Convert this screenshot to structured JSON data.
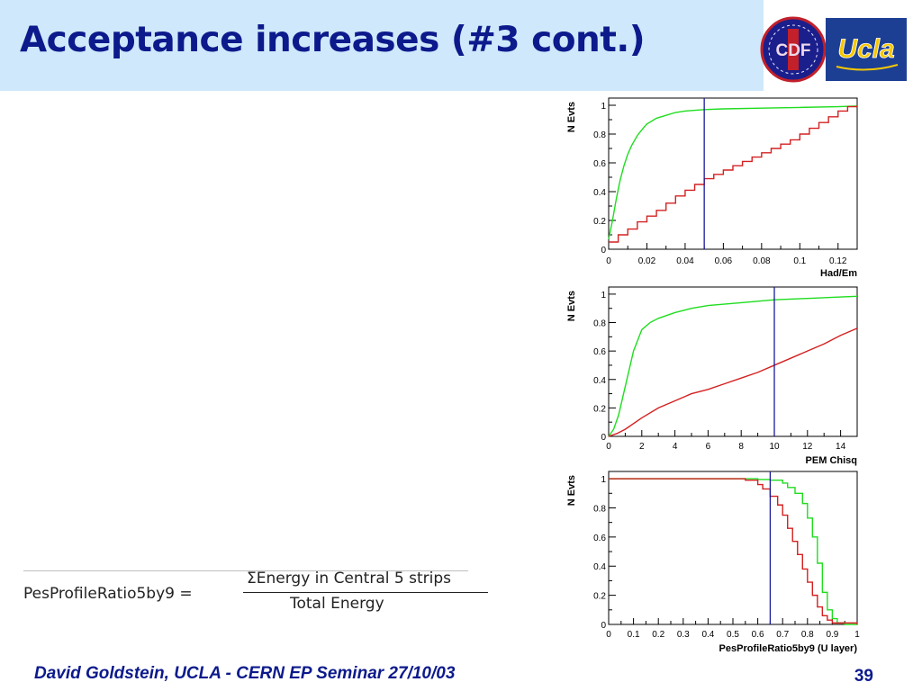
{
  "slide": {
    "title": "Acceptance increases (#3 cont.)",
    "footer": "David Goldstein, UCLA - CERN EP Seminar 27/10/03",
    "page_number": "39"
  },
  "logos": {
    "cdf": "CDF",
    "ucla": "Ucla"
  },
  "formula": {
    "lhs": "PesProfileRatio5by9 =",
    "numerator": "ΣEnergy in Central 5 strips",
    "denominator": "Total Energy"
  },
  "colors": {
    "title": "#0c1a8c",
    "band": "#cfe8fb",
    "signal": "#1fdd1f",
    "background_curve": "#d42020",
    "cut_line": "#1a1a9a"
  },
  "chart_data": [
    {
      "type": "line",
      "xlabel": "Had/Em",
      "ylabel": "N Evts",
      "xlim": [
        0,
        0.13
      ],
      "ylim": [
        0,
        1.05
      ],
      "xticks": [
        0,
        0.02,
        0.04,
        0.06,
        0.08,
        0.1,
        0.12
      ],
      "xtick_labels": [
        "0",
        "0.02",
        "0.04",
        "0.06",
        "0.08",
        "0.1",
        "0.12"
      ],
      "yticks": [
        0,
        0.2,
        0.4,
        0.6,
        0.8,
        1
      ],
      "ytick_labels": [
        "0",
        "0.2",
        "0.4",
        "0.6",
        "0.8",
        "1"
      ],
      "cut_x": 0.05,
      "series": [
        {
          "color": "#1fdd1f",
          "step": false,
          "x": [
            0,
            0.002,
            0.004,
            0.006,
            0.008,
            0.01,
            0.012,
            0.015,
            0.018,
            0.02,
            0.025,
            0.03,
            0.035,
            0.04,
            0.05,
            0.06,
            0.08,
            0.1,
            0.12,
            0.13
          ],
          "y": [
            0.07,
            0.2,
            0.35,
            0.48,
            0.58,
            0.66,
            0.72,
            0.79,
            0.84,
            0.87,
            0.91,
            0.93,
            0.95,
            0.96,
            0.97,
            0.975,
            0.98,
            0.985,
            0.99,
            0.995
          ]
        },
        {
          "color": "#d42020",
          "step": true,
          "x": [
            0,
            0.005,
            0.01,
            0.015,
            0.02,
            0.025,
            0.03,
            0.035,
            0.04,
            0.045,
            0.05,
            0.055,
            0.06,
            0.065,
            0.07,
            0.075,
            0.08,
            0.085,
            0.09,
            0.095,
            0.1,
            0.105,
            0.11,
            0.115,
            0.12,
            0.125,
            0.13
          ],
          "y": [
            0.05,
            0.1,
            0.14,
            0.19,
            0.23,
            0.27,
            0.32,
            0.37,
            0.41,
            0.45,
            0.49,
            0.52,
            0.55,
            0.58,
            0.61,
            0.64,
            0.67,
            0.7,
            0.73,
            0.76,
            0.8,
            0.84,
            0.88,
            0.92,
            0.96,
            0.99,
            1.0
          ]
        }
      ]
    },
    {
      "type": "line",
      "xlabel": "PEM Chisq",
      "ylabel": "N Evts",
      "xlim": [
        0,
        15
      ],
      "ylim": [
        0,
        1.05
      ],
      "xticks": [
        0,
        2,
        4,
        6,
        8,
        10,
        12,
        14
      ],
      "xtick_labels": [
        "0",
        "2",
        "4",
        "6",
        "8",
        "10",
        "12",
        "14"
      ],
      "yticks": [
        0,
        0.2,
        0.4,
        0.6,
        0.8,
        1
      ],
      "ytick_labels": [
        "0",
        "0.2",
        "0.4",
        "0.6",
        "0.8",
        "1"
      ],
      "cut_x": 10,
      "series": [
        {
          "color": "#1fdd1f",
          "step": false,
          "x": [
            0,
            0.3,
            0.6,
            1,
            1.5,
            2,
            2.5,
            3,
            4,
            5,
            6,
            8,
            10,
            12,
            14,
            15
          ],
          "y": [
            0,
            0.05,
            0.15,
            0.35,
            0.6,
            0.75,
            0.8,
            0.83,
            0.87,
            0.9,
            0.92,
            0.94,
            0.96,
            0.97,
            0.98,
            0.985
          ]
        },
        {
          "color": "#d42020",
          "step": false,
          "x": [
            0,
            0.5,
            1,
            2,
            3,
            4,
            5,
            6,
            7,
            8,
            9,
            10,
            11,
            12,
            13,
            14,
            15
          ],
          "y": [
            0,
            0.02,
            0.05,
            0.13,
            0.2,
            0.25,
            0.3,
            0.33,
            0.37,
            0.41,
            0.45,
            0.5,
            0.55,
            0.6,
            0.65,
            0.71,
            0.76
          ]
        }
      ]
    },
    {
      "type": "line",
      "xlabel": "PesProfileRatio5by9 (U layer)",
      "ylabel": "N Evts",
      "xlim": [
        0,
        1
      ],
      "ylim": [
        0,
        1.05
      ],
      "xticks": [
        0,
        0.1,
        0.2,
        0.3,
        0.4,
        0.5,
        0.6,
        0.7,
        0.8,
        0.9,
        1
      ],
      "xtick_labels": [
        "0",
        "0.1",
        "0.2",
        "0.3",
        "0.4",
        "0.5",
        "0.6",
        "0.7",
        "0.8",
        "0.9",
        "1"
      ],
      "yticks": [
        0,
        0.2,
        0.4,
        0.6,
        0.8,
        1
      ],
      "ytick_labels": [
        "0",
        "0.2",
        "0.4",
        "0.6",
        "0.8",
        "1"
      ],
      "cut_x": 0.65,
      "series": [
        {
          "color": "#1fdd1f",
          "step": true,
          "x": [
            0,
            0.5,
            0.6,
            0.65,
            0.7,
            0.72,
            0.75,
            0.78,
            0.8,
            0.82,
            0.84,
            0.86,
            0.88,
            0.9,
            0.92,
            0.95,
            1
          ],
          "y": [
            1,
            1,
            0.995,
            0.99,
            0.97,
            0.94,
            0.9,
            0.83,
            0.73,
            0.6,
            0.42,
            0.22,
            0.1,
            0.04,
            0.01,
            0,
            0
          ]
        },
        {
          "color": "#d42020",
          "step": true,
          "x": [
            0,
            0.5,
            0.55,
            0.6,
            0.62,
            0.65,
            0.68,
            0.7,
            0.72,
            0.74,
            0.76,
            0.78,
            0.8,
            0.82,
            0.84,
            0.86,
            0.88,
            0.9,
            1
          ],
          "y": [
            1,
            1,
            0.99,
            0.96,
            0.93,
            0.88,
            0.82,
            0.75,
            0.66,
            0.57,
            0.48,
            0.38,
            0.29,
            0.2,
            0.12,
            0.06,
            0.03,
            0.01,
            0
          ]
        }
      ]
    }
  ]
}
